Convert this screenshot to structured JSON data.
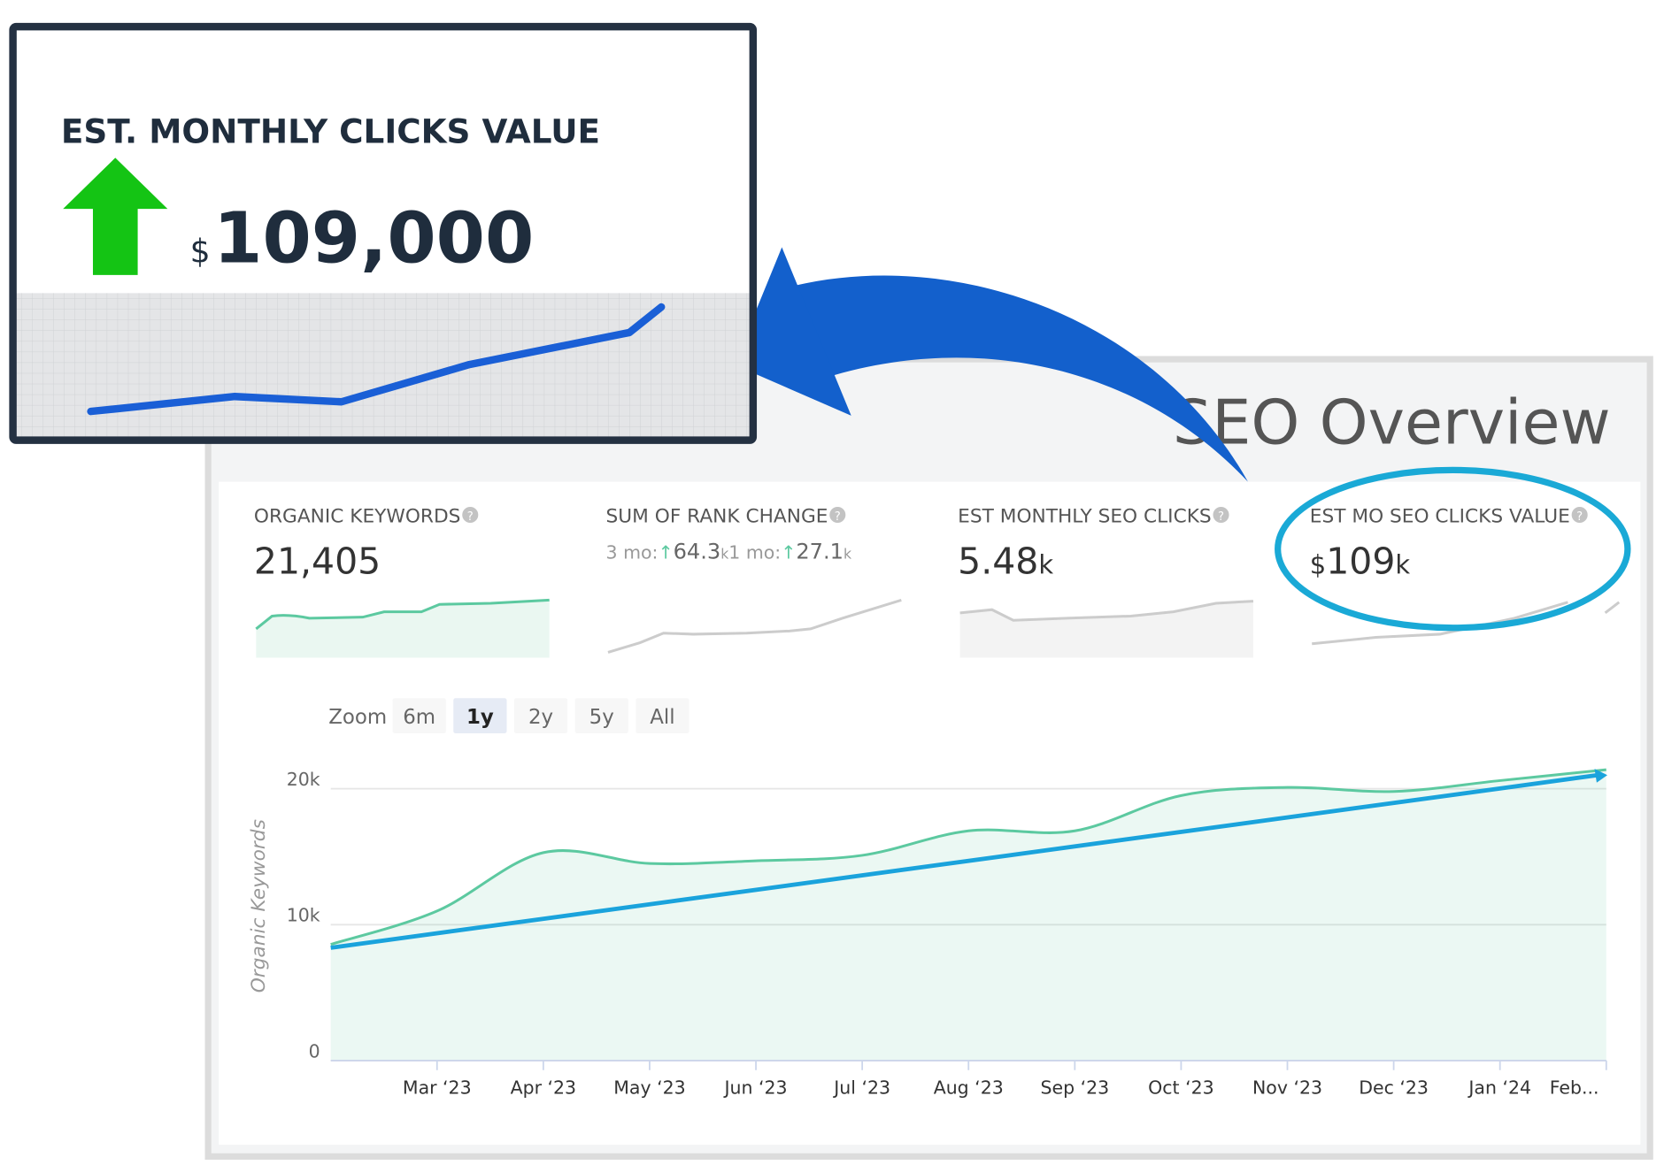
{
  "callout": {
    "title": "EST. MONTHLY CLICKS VALUE",
    "prefix": "$",
    "value": "109,000"
  },
  "panel": {
    "title": "SEO Overview",
    "metrics": [
      {
        "label": "ORGANIC KEYWORDS",
        "value": "21,405"
      },
      {
        "label": "SUM OF RANK CHANGE",
        "details": [
          {
            "label": "3 mo:",
            "value": "64.3",
            "suffix": "k"
          },
          {
            "label": "1 mo:",
            "value": "27.1",
            "suffix": "k"
          }
        ]
      },
      {
        "label": "EST MONTHLY SEO CLICKS",
        "value": "5.48",
        "suffix": "k"
      },
      {
        "label": "EST MO SEO CLICKS VALUE",
        "prefix": "$",
        "value": "109",
        "suffix": "k"
      }
    ],
    "zoom": {
      "label": "Zoom",
      "options": [
        "6m",
        "1y",
        "2y",
        "5y",
        "All"
      ],
      "active": 1
    }
  },
  "chart_data": {
    "type": "area",
    "y_label": "Organic Keywords",
    "categories": [
      null,
      "Mar ‘23",
      "Apr ‘23",
      "May ‘23",
      "Jun ‘23",
      "Jul ‘23",
      "Aug ‘23",
      "Sep ‘23",
      "Oct ‘23",
      "Nov ‘23",
      "Dec ‘23",
      "Jan ‘24",
      "Feb..."
    ],
    "series": [
      {
        "name": "Organic Keywords",
        "color": "#5cc9a0",
        "values": [
          8550,
          11000,
          15300,
          14500,
          14700,
          15100,
          16900,
          16900,
          19500,
          20100,
          19800,
          20600,
          21405
        ]
      }
    ],
    "trend": {
      "color": "#1aa3dc",
      "values": [
        8300,
        21000
      ]
    },
    "ylim": [
      0,
      22000
    ],
    "yticks": [
      {
        "value": 0,
        "label": "0"
      },
      {
        "value": 10000,
        "label": "10k"
      },
      {
        "value": 20000,
        "label": "20k"
      }
    ],
    "grid": true
  }
}
